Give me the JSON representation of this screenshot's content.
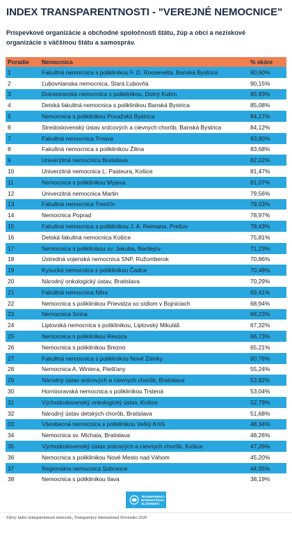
{
  "header": {
    "title": "INDEX TRANSPARENTNOSTI - \"VEREJNÉ NEMOCNICE\"",
    "subtitle": "Príspevkové organizácie a obchodné spoločnosti štátu, žúp a obcí a neziskové organizácie s väčšinou štátu a samospráv."
  },
  "table": {
    "columns": [
      "Poradie",
      "Nemocnica",
      "% skóre"
    ],
    "rows": [
      [
        "1",
        "Fakultná nemocnica s poliklinikou F. D. Roosevelta, Banská Bystrica",
        "90,60%"
      ],
      [
        "2",
        "Ľubovnianska nemocnica, Stará Ľubovňa",
        "90,15%"
      ],
      [
        "3",
        "Dolnooravská nemocnica s poliklinikou, Dolný Kubín",
        "85,93%"
      ],
      [
        "4",
        "Detská fakultná nemocnica s poliklinikou Banská Bystrica",
        "85,08%"
      ],
      [
        "5",
        "Nemocnica s poliklinikou Považská Bystrica",
        "84,17%"
      ],
      [
        "6",
        "Stredoslovenský ústav srdcových a cievnych chorôb, Banská Bystrica",
        "84,12%"
      ],
      [
        "7",
        "Fakultná nemocnica Trnava",
        "83,80%"
      ],
      [
        "8",
        "Fakultná nemocnica s poliklinikou Žilina",
        "83,68%"
      ],
      [
        "9",
        "Univerzitná nemocnica Bratislava",
        "82,02%"
      ],
      [
        "10",
        "Univerzitná nemocnica L. Pasteura, Košice",
        "81,47%"
      ],
      [
        "11",
        "Nemocnica s poliklinikou Myjava",
        "81,07%"
      ],
      [
        "12",
        "Univerzitná nemocnica Martin",
        "79,56%"
      ],
      [
        "13",
        "Fakultná nemocnica Trenčín",
        "79,03%"
      ],
      [
        "14",
        "Nemocnica Poprad",
        "78,97%"
      ],
      [
        "15",
        "Fakultná nemocnica s poliklinikou J. A. Reimana, Prešov",
        "78,43%"
      ],
      [
        "16",
        "Detská fakultná nemocnica Košice",
        "75,81%"
      ],
      [
        "17",
        "Nemocnica s poliklinikou sv. Jakuba, Bardejov",
        "71,23%"
      ],
      [
        "18",
        "Ústredná vojenská nemocnica SNP, Ružomberok",
        "70,86%"
      ],
      [
        "19",
        "Kysucká nemocnica s poliklinikou Čadca",
        "70,48%"
      ],
      [
        "20",
        "Národný onkologický ústav, Bratislava",
        "70,29%"
      ],
      [
        "21",
        "Fakultná nemocnica Nitra",
        "69,41%"
      ],
      [
        "22",
        "Nemocnica s poliklinikou Prievidza so sídlom v Bojniciach",
        "68,94%"
      ],
      [
        "23",
        "Nemocnica Snina",
        "68,23%"
      ],
      [
        "24",
        "Liptovská nemocnica s poliklinikou, Liptovský Mikuláš",
        "67,32%"
      ],
      [
        "25",
        "Nemocnica s poliklinikou Revúca",
        "66,73%"
      ],
      [
        "26",
        "Nemocnica s poliklinikou Brezno",
        "65,21%"
      ],
      [
        "27",
        "Fakultná nemocnica s poliklinikou Nové Zámky",
        "60,76%"
      ],
      [
        "28",
        "Nemocnica A. Wintera, Piešťany",
        "55,24%"
      ],
      [
        "29",
        "Národný ústav srdcových a cievnych chorôb, Bratislava",
        "53,82%"
      ],
      [
        "30",
        "Hornooravská nemocnica s poliklinikou Trstená",
        "53,04%"
      ],
      [
        "31",
        "Východoslovenský onkologický ústav, Košice",
        "52,79%"
      ],
      [
        "32",
        "Národný ústav detských chorôb, Bratislava",
        "51,68%"
      ],
      [
        "33",
        "Všeobecná nemocnica s poliklinikou Veľký Krtíš",
        "48,34%"
      ],
      [
        "34",
        "Nemocnica sv. Michala, Bratislava",
        "48,26%"
      ],
      [
        "35",
        "Východoslovenský ústav srdcových a cievnych chorôb, Košice",
        "47,26%"
      ],
      [
        "36",
        "Nemocnica s poliklinikou Nové Mesto nad Váhom",
        "45,20%"
      ],
      [
        "37",
        "Regionálna nemocnica Sobrance",
        "44,95%"
      ],
      [
        "38",
        "Nemocnica s poliklinikou Ilava",
        "38,19%"
      ]
    ]
  },
  "footer": {
    "logo": "TRANSPARENCY INTERNATIONAL SLOVENSKO",
    "source": "Zdroj: Index transparentnosti nemocníc, Transparency International Slovensko 2020"
  }
}
